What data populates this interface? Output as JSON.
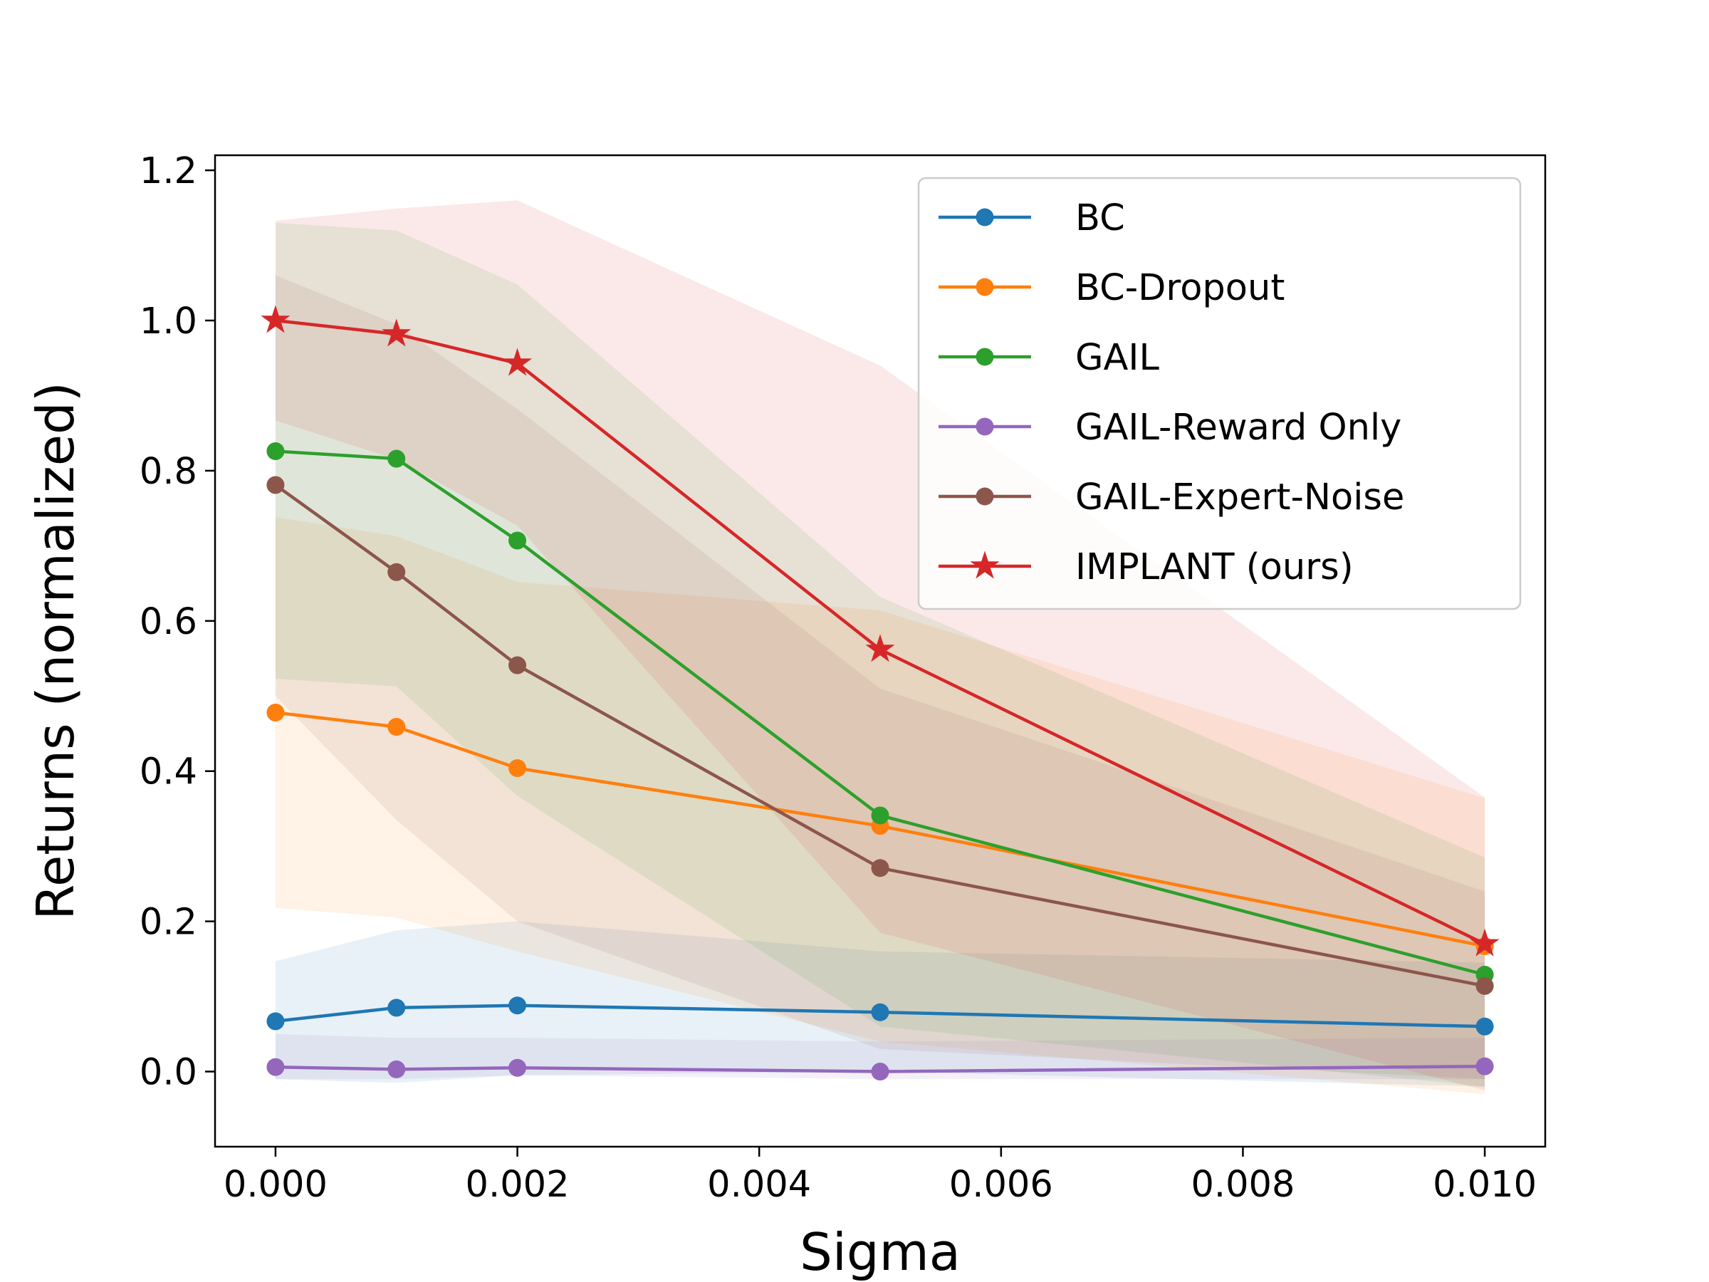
{
  "chart_data": {
    "type": "line",
    "title": "",
    "xlabel": "Sigma",
    "ylabel": "Returns (normalized)",
    "xlim": [
      -0.0005,
      0.0105
    ],
    "ylim": [
      -0.1,
      1.22
    ],
    "x": [
      0.0,
      0.001,
      0.002,
      0.005,
      0.01
    ],
    "xticks": [
      0.0,
      0.002,
      0.004,
      0.006,
      0.008,
      0.01
    ],
    "xtick_labels": [
      "0.000",
      "0.002",
      "0.004",
      "0.006",
      "0.008",
      "0.010"
    ],
    "yticks": [
      0.0,
      0.2,
      0.4,
      0.6,
      0.8,
      1.0,
      1.2
    ],
    "ytick_labels": [
      "0.0",
      "0.2",
      "0.4",
      "0.6",
      "0.8",
      "1.0",
      "1.2"
    ],
    "grid": false,
    "legend_position": "top-right",
    "series": [
      {
        "name": "BC",
        "color": "#1f77b4",
        "marker": "circle",
        "values": [
          0.067,
          0.085,
          0.088,
          0.079,
          0.06
        ],
        "lower": [
          -0.01,
          -0.015,
          -0.005,
          0.0,
          -0.02
        ],
        "upper": [
          0.147,
          0.188,
          0.2,
          0.16,
          0.145
        ]
      },
      {
        "name": "BC-Dropout",
        "color": "#ff7f0e",
        "marker": "circle",
        "values": [
          0.478,
          0.459,
          0.404,
          0.327,
          0.167
        ],
        "lower": [
          0.218,
          0.205,
          0.16,
          0.04,
          -0.03
        ],
        "upper": [
          0.738,
          0.713,
          0.652,
          0.614,
          0.364
        ]
      },
      {
        "name": "GAIL",
        "color": "#2ca02c",
        "marker": "circle",
        "values": [
          0.826,
          0.816,
          0.707,
          0.341,
          0.129
        ],
        "lower": [
          0.523,
          0.513,
          0.367,
          0.06,
          -0.02
        ],
        "upper": [
          1.13,
          1.12,
          1.048,
          0.632,
          0.285
        ]
      },
      {
        "name": "GAIL-Reward Only",
        "color": "#9467bd",
        "marker": "circle",
        "values": [
          0.006,
          0.003,
          0.005,
          0.0,
          0.007
        ],
        "lower": [
          -0.01,
          -0.01,
          -0.005,
          -0.01,
          -0.01
        ],
        "upper": [
          0.05,
          0.045,
          0.045,
          0.04,
          0.045
        ]
      },
      {
        "name": "GAIL-Expert-Noise",
        "color": "#8c564b",
        "marker": "circle",
        "values": [
          0.781,
          0.665,
          0.541,
          0.271,
          0.114
        ],
        "lower": [
          0.5,
          0.335,
          0.2,
          0.03,
          -0.01
        ],
        "upper": [
          1.06,
          0.995,
          0.882,
          0.51,
          0.24
        ]
      },
      {
        "name": "IMPLANT (ours)",
        "color": "#d62728",
        "marker": "star",
        "values": [
          1.0,
          0.982,
          0.943,
          0.562,
          0.17
        ],
        "lower": [
          0.867,
          0.815,
          0.727,
          0.185,
          -0.025
        ],
        "upper": [
          1.133,
          1.149,
          1.16,
          0.94,
          0.365
        ]
      }
    ]
  }
}
